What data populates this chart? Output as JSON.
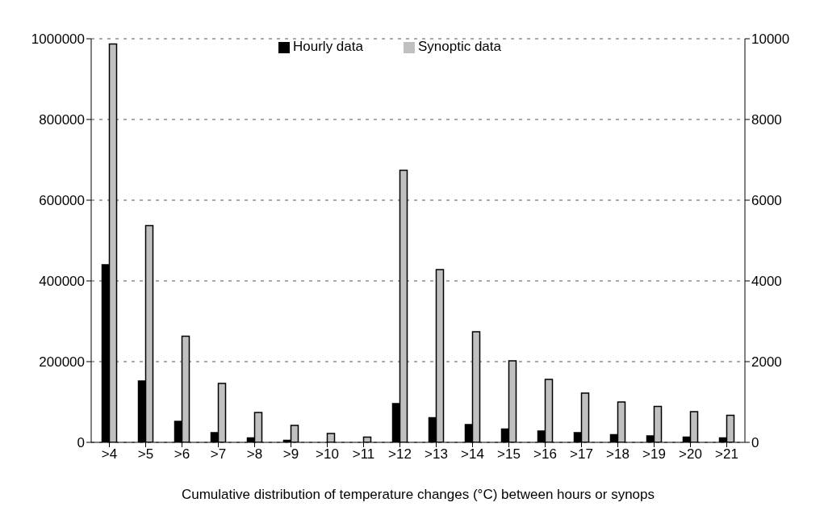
{
  "chart_data": {
    "type": "bar",
    "xlabel": "Cumulative distribution of temperature changes (°C) between hours or synops",
    "categories": [
      ">4",
      ">5",
      ">6",
      ">7",
      ">8",
      ">9",
      ">10",
      ">11",
      ">12",
      ">13",
      ">14",
      ">15",
      ">16",
      ">17",
      ">18",
      ">19",
      ">20",
      ">21"
    ],
    "series": [
      {
        "name": "Hourly data",
        "color": "#000000",
        "values": [
          440000,
          152000,
          52000,
          24000,
          11000,
          5000,
          null,
          null,
          96000,
          61000,
          44000,
          33000,
          28000,
          24000,
          19000,
          16000,
          13000,
          11000
        ]
      },
      {
        "name": "Synoptic data",
        "color": "#c0c0c0",
        "axis": "y2",
        "values": [
          9870,
          5370,
          2630,
          1460,
          740,
          420,
          220,
          130,
          6740,
          4280,
          2740,
          2020,
          1560,
          1220,
          1000,
          890,
          760,
          670
        ]
      }
    ],
    "ylim": [
      0,
      1000000
    ],
    "yticks": [
      0,
      200000,
      400000,
      600000,
      800000,
      1000000
    ],
    "y2lim": [
      0,
      10000
    ],
    "y2ticks": [
      0,
      2000,
      4000,
      6000,
      8000,
      10000
    ],
    "grid": "y",
    "legend": "top"
  }
}
